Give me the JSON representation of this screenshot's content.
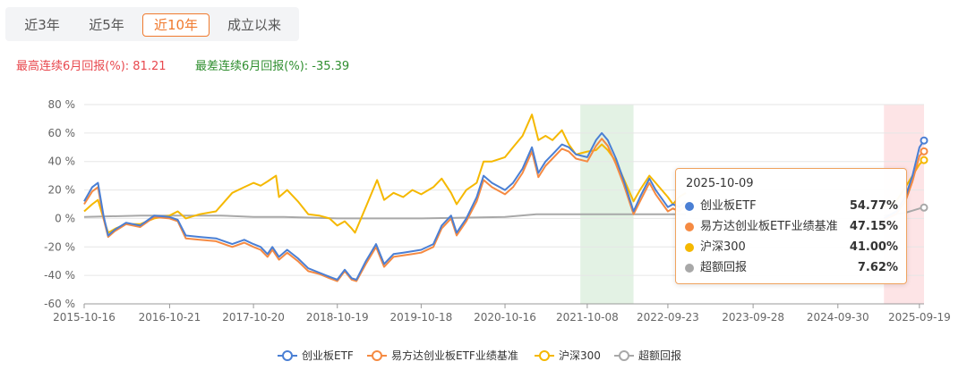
{
  "tabs": [
    {
      "label": "近3年",
      "active": false
    },
    {
      "label": "近5年",
      "active": false
    },
    {
      "label": "近10年",
      "active": true
    },
    {
      "label": "成立以来",
      "active": false
    }
  ],
  "returns": {
    "best": "最高连续6月回报(%): 81.21",
    "worst": "最差连续6月回报(%): -35.39"
  },
  "tooltip": {
    "date": "2025-10-09",
    "rows": [
      {
        "name": "创业板ETF",
        "value": "54.77%",
        "color": "#4a7fd4"
      },
      {
        "name": "易方达创业板ETF业绩基准",
        "value": "47.15%",
        "color": "#f58a42"
      },
      {
        "name": "沪深300",
        "value": "41.00%",
        "color": "#f5b800"
      },
      {
        "name": "超额回报",
        "value": "7.62%",
        "color": "#a8a8a8"
      }
    ]
  },
  "chart_data": {
    "type": "line",
    "y_tick_labels": [
      "80 %",
      "60 %",
      "40 %",
      "20 %",
      "0 %",
      "-20 %",
      "-40 %",
      "-60 %"
    ],
    "ylim": [
      -60,
      80
    ],
    "x_tick_labels": [
      "2015-10-16",
      "2016-10-21",
      "2017-10-20",
      "2018-10-19",
      "2019-10-18",
      "2020-10-16",
      "2021-10-08",
      "2022-09-23",
      "2023-09-28",
      "2024-09-30",
      "2025-09-19"
    ],
    "xlim": [
      "2015-10-16",
      "2025-10-09"
    ],
    "grid": true,
    "legend_position": "bottom",
    "shaded_regions": [
      {
        "start": "2021-09-08",
        "end": "2022-04-27",
        "color": "#e3f2e4"
      },
      {
        "start": "2025-04-18",
        "end": "2025-10-09",
        "color": "#fde4e6"
      }
    ],
    "series": [
      {
        "name": "创业板ETF",
        "color": "#4a7fd4",
        "points": [
          [
            "2015-10-16",
            12
          ],
          [
            "2015-11-20",
            22
          ],
          [
            "2015-12-15",
            25
          ],
          [
            "2016-01-08",
            2
          ],
          [
            "2016-01-28",
            -12
          ],
          [
            "2016-02-25",
            -8
          ],
          [
            "2016-04-15",
            -3
          ],
          [
            "2016-06-15",
            -5
          ],
          [
            "2016-08-15",
            2
          ],
          [
            "2016-10-21",
            1
          ],
          [
            "2016-11-25",
            -1
          ],
          [
            "2016-12-30",
            -12
          ],
          [
            "2017-03-01",
            -13
          ],
          [
            "2017-05-10",
            -14
          ],
          [
            "2017-07-20",
            -18
          ],
          [
            "2017-09-10",
            -15
          ],
          [
            "2017-10-20",
            -18
          ],
          [
            "2017-11-20",
            -20
          ],
          [
            "2017-12-20",
            -25
          ],
          [
            "2018-01-10",
            -20
          ],
          [
            "2018-02-08",
            -27
          ],
          [
            "2018-03-15",
            -22
          ],
          [
            "2018-05-01",
            -28
          ],
          [
            "2018-06-15",
            -35
          ],
          [
            "2018-08-01",
            -38
          ],
          [
            "2018-09-15",
            -41
          ],
          [
            "2018-10-19",
            -43
          ],
          [
            "2018-11-20",
            -36
          ],
          [
            "2018-12-20",
            -42
          ],
          [
            "2019-01-10",
            -43
          ],
          [
            "2019-02-20",
            -30
          ],
          [
            "2019-04-05",
            -18
          ],
          [
            "2019-05-10",
            -32
          ],
          [
            "2019-06-20",
            -25
          ],
          [
            "2019-08-01",
            -24
          ],
          [
            "2019-09-10",
            -23
          ],
          [
            "2019-10-18",
            -22
          ],
          [
            "2019-12-10",
            -18
          ],
          [
            "2020-01-15",
            -5
          ],
          [
            "2020-02-25",
            2
          ],
          [
            "2020-03-20",
            -10
          ],
          [
            "2020-05-01",
            0
          ],
          [
            "2020-06-15",
            15
          ],
          [
            "2020-07-15",
            30
          ],
          [
            "2020-08-20",
            25
          ],
          [
            "2020-10-16",
            20
          ],
          [
            "2020-11-20",
            25
          ],
          [
            "2020-12-31",
            35
          ],
          [
            "2021-02-10",
            50
          ],
          [
            "2021-03-10",
            32
          ],
          [
            "2021-04-10",
            40
          ],
          [
            "2021-05-10",
            45
          ],
          [
            "2021-06-20",
            52
          ],
          [
            "2021-07-20",
            50
          ],
          [
            "2021-08-20",
            45
          ],
          [
            "2021-10-08",
            43
          ],
          [
            "2021-11-15",
            55
          ],
          [
            "2021-12-10",
            60
          ],
          [
            "2022-01-05",
            55
          ],
          [
            "2022-02-10",
            42
          ],
          [
            "2022-03-15",
            27
          ],
          [
            "2022-04-27",
            5
          ],
          [
            "2022-05-25",
            15
          ],
          [
            "2022-07-05",
            28
          ],
          [
            "2022-08-01",
            20
          ],
          [
            "2022-09-23",
            8
          ],
          [
            "2022-10-15",
            10
          ],
          [
            "2022-11-10",
            8
          ],
          [
            "2022-12-10",
            12
          ]
        ]
      },
      {
        "name": "易方达创业板ETF业绩基准",
        "color": "#f58a42",
        "points": [
          [
            "2015-10-16",
            10
          ],
          [
            "2015-11-20",
            19
          ],
          [
            "2015-12-15",
            22
          ],
          [
            "2016-01-08",
            0
          ],
          [
            "2016-01-28",
            -13
          ],
          [
            "2016-02-25",
            -9
          ],
          [
            "2016-04-15",
            -4
          ],
          [
            "2016-06-15",
            -6
          ],
          [
            "2016-08-15",
            1
          ],
          [
            "2016-10-21",
            0
          ],
          [
            "2016-11-25",
            -2
          ],
          [
            "2016-12-30",
            -14
          ],
          [
            "2017-03-01",
            -15
          ],
          [
            "2017-05-10",
            -16
          ],
          [
            "2017-07-20",
            -20
          ],
          [
            "2017-09-10",
            -17
          ],
          [
            "2017-10-20",
            -20
          ],
          [
            "2017-11-20",
            -22
          ],
          [
            "2017-12-20",
            -27
          ],
          [
            "2018-01-10",
            -22
          ],
          [
            "2018-02-08",
            -29
          ],
          [
            "2018-03-15",
            -24
          ],
          [
            "2018-05-01",
            -30
          ],
          [
            "2018-06-15",
            -37
          ],
          [
            "2018-08-01",
            -39
          ],
          [
            "2018-09-15",
            -42
          ],
          [
            "2018-10-19",
            -44
          ],
          [
            "2018-11-20",
            -37
          ],
          [
            "2018-12-20",
            -43
          ],
          [
            "2019-01-10",
            -44
          ],
          [
            "2019-02-20",
            -32
          ],
          [
            "2019-04-05",
            -20
          ],
          [
            "2019-05-10",
            -34
          ],
          [
            "2019-06-20",
            -27
          ],
          [
            "2019-08-01",
            -26
          ],
          [
            "2019-09-10",
            -25
          ],
          [
            "2019-10-18",
            -24
          ],
          [
            "2019-12-10",
            -20
          ],
          [
            "2020-01-15",
            -7
          ],
          [
            "2020-02-25",
            0
          ],
          [
            "2020-03-20",
            -12
          ],
          [
            "2020-05-01",
            -2
          ],
          [
            "2020-06-15",
            12
          ],
          [
            "2020-07-15",
            27
          ],
          [
            "2020-08-20",
            22
          ],
          [
            "2020-10-16",
            17
          ],
          [
            "2020-11-20",
            22
          ],
          [
            "2020-12-31",
            32
          ],
          [
            "2021-02-10",
            47
          ],
          [
            "2021-03-10",
            29
          ],
          [
            "2021-04-10",
            37
          ],
          [
            "2021-05-10",
            42
          ],
          [
            "2021-06-20",
            49
          ],
          [
            "2021-07-20",
            47
          ],
          [
            "2021-08-20",
            42
          ],
          [
            "2021-10-08",
            40
          ],
          [
            "2021-11-15",
            51
          ],
          [
            "2021-12-10",
            56
          ],
          [
            "2022-01-05",
            51
          ],
          [
            "2022-02-10",
            38
          ],
          [
            "2022-03-15",
            24
          ],
          [
            "2022-04-27",
            3
          ],
          [
            "2022-05-25",
            12
          ],
          [
            "2022-07-05",
            25
          ],
          [
            "2022-08-01",
            17
          ],
          [
            "2022-09-23",
            5
          ],
          [
            "2022-10-15",
            7
          ],
          [
            "2022-11-10",
            5
          ],
          [
            "2022-12-10",
            9
          ]
        ]
      },
      {
        "name": "沪深300",
        "color": "#f5b800",
        "points": [
          [
            "2015-10-16",
            5
          ],
          [
            "2015-11-20",
            10
          ],
          [
            "2015-12-15",
            13
          ],
          [
            "2016-01-08",
            0
          ],
          [
            "2016-01-28",
            -10
          ],
          [
            "2016-03-01",
            -7
          ],
          [
            "2016-04-15",
            -4
          ],
          [
            "2016-06-15",
            -4
          ],
          [
            "2016-08-15",
            0
          ],
          [
            "2016-10-21",
            2
          ],
          [
            "2016-11-25",
            5
          ],
          [
            "2016-12-30",
            0
          ],
          [
            "2017-03-01",
            3
          ],
          [
            "2017-05-10",
            5
          ],
          [
            "2017-07-20",
            18
          ],
          [
            "2017-09-10",
            22
          ],
          [
            "2017-10-20",
            25
          ],
          [
            "2017-11-20",
            23
          ],
          [
            "2017-12-20",
            26
          ],
          [
            "2018-01-26",
            30
          ],
          [
            "2018-02-08",
            15
          ],
          [
            "2018-03-15",
            20
          ],
          [
            "2018-05-01",
            12
          ],
          [
            "2018-06-15",
            3
          ],
          [
            "2018-08-01",
            2
          ],
          [
            "2018-09-15",
            0
          ],
          [
            "2018-10-19",
            -5
          ],
          [
            "2018-11-20",
            -2
          ],
          [
            "2018-12-20",
            -7
          ],
          [
            "2019-01-04",
            -10
          ],
          [
            "2019-02-25",
            10
          ],
          [
            "2019-04-10",
            27
          ],
          [
            "2019-05-10",
            13
          ],
          [
            "2019-06-20",
            18
          ],
          [
            "2019-08-01",
            15
          ],
          [
            "2019-09-10",
            20
          ],
          [
            "2019-10-18",
            17
          ],
          [
            "2019-12-10",
            22
          ],
          [
            "2020-01-15",
            28
          ],
          [
            "2020-02-25",
            18
          ],
          [
            "2020-03-20",
            10
          ],
          [
            "2020-05-01",
            20
          ],
          [
            "2020-06-15",
            25
          ],
          [
            "2020-07-15",
            40
          ],
          [
            "2020-08-20",
            40
          ],
          [
            "2020-10-16",
            43
          ],
          [
            "2020-11-20",
            50
          ],
          [
            "2020-12-31",
            58
          ],
          [
            "2021-02-10",
            73
          ],
          [
            "2021-03-10",
            55
          ],
          [
            "2021-04-10",
            58
          ],
          [
            "2021-05-10",
            55
          ],
          [
            "2021-06-20",
            62
          ],
          [
            "2021-07-20",
            52
          ],
          [
            "2021-08-20",
            45
          ],
          [
            "2021-10-08",
            47
          ],
          [
            "2021-11-15",
            48
          ],
          [
            "2021-12-10",
            52
          ],
          [
            "2022-01-05",
            48
          ],
          [
            "2022-02-10",
            40
          ],
          [
            "2022-03-15",
            28
          ],
          [
            "2022-04-27",
            12
          ],
          [
            "2022-05-25",
            20
          ],
          [
            "2022-07-05",
            30
          ],
          [
            "2022-08-01",
            25
          ],
          [
            "2022-09-23",
            15
          ],
          [
            "2022-10-15",
            10
          ],
          [
            "2022-11-10",
            15
          ],
          [
            "2022-12-10",
            18
          ]
        ]
      },
      {
        "name": "超额回报",
        "color": "#a8a8a8",
        "points": [
          [
            "2015-10-16",
            1
          ],
          [
            "2016-06-15",
            2
          ],
          [
            "2017-06-01",
            2
          ],
          [
            "2017-10-20",
            1
          ],
          [
            "2018-03-01",
            1
          ],
          [
            "2018-10-19",
            0
          ],
          [
            "2019-10-18",
            0
          ],
          [
            "2020-10-16",
            1
          ],
          [
            "2021-03-01",
            3
          ],
          [
            "2021-10-08",
            3
          ],
          [
            "2022-04-27",
            3
          ],
          [
            "2022-12-10",
            3
          ]
        ]
      }
    ],
    "tooltip_end_values": {
      "date": "2025-10-09",
      "创业板ETF": 54.77,
      "易方达创业板ETF业绩基准": 47.15,
      "沪深300": 41.0,
      "超额回报": 7.62
    },
    "late_segments": [
      {
        "name": "创业板ETF",
        "points": [
          [
            "2025-04-18",
            0
          ],
          [
            "2025-06-10",
            5
          ],
          [
            "2025-07-20",
            15
          ],
          [
            "2025-08-20",
            30
          ],
          [
            "2025-09-19",
            50
          ],
          [
            "2025-10-09",
            54.77
          ]
        ]
      },
      {
        "name": "易方达创业板ETF业绩基准",
        "points": [
          [
            "2025-04-18",
            -1
          ],
          [
            "2025-06-10",
            3
          ],
          [
            "2025-07-20",
            12
          ],
          [
            "2025-08-20",
            26
          ],
          [
            "2025-09-19",
            44
          ],
          [
            "2025-10-09",
            47.15
          ]
        ]
      },
      {
        "name": "沪深300",
        "points": [
          [
            "2025-04-18",
            8
          ],
          [
            "2025-06-10",
            12
          ],
          [
            "2025-07-20",
            22
          ],
          [
            "2025-08-20",
            30
          ],
          [
            "2025-09-19",
            38
          ],
          [
            "2025-10-09",
            41.0
          ]
        ]
      },
      {
        "name": "超额回报",
        "points": [
          [
            "2025-04-18",
            2
          ],
          [
            "2025-07-20",
            4
          ],
          [
            "2025-09-19",
            7
          ],
          [
            "2025-10-09",
            7.62
          ]
        ]
      }
    ]
  }
}
